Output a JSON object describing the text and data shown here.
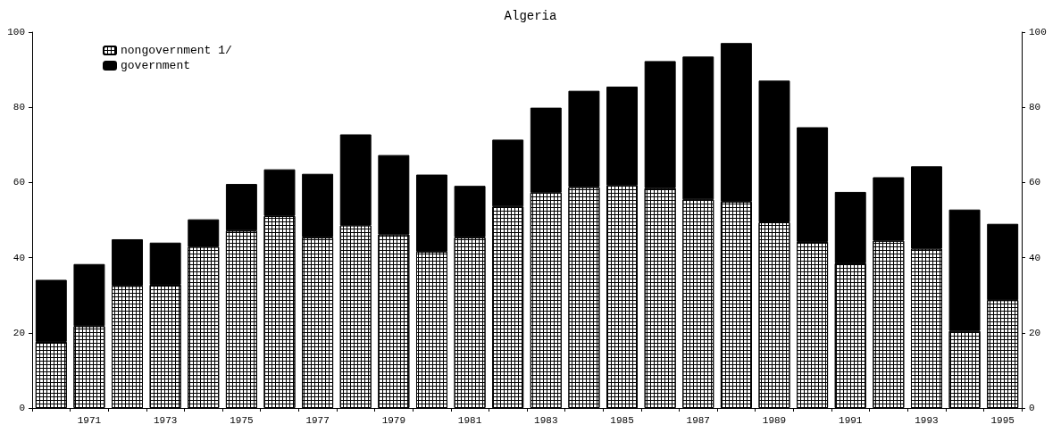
{
  "chart_data": {
    "type": "bar",
    "title": "Algeria",
    "stacked": true,
    "categories": [
      null,
      "1971",
      null,
      "1973",
      null,
      "1975",
      null,
      "1977",
      null,
      "1979",
      null,
      "1981",
      null,
      "1983",
      null,
      "1985",
      null,
      "1987",
      null,
      "1989",
      null,
      "1991",
      null,
      "1993",
      null,
      "1995"
    ],
    "series": [
      {
        "name": "nongovernment 1/",
        "color": "#ffffff",
        "values": [
          17.6,
          21.8,
          32.5,
          32.8,
          42.9,
          47.2,
          51.1,
          45.4,
          48.6,
          46.2,
          41.6,
          45.4,
          53.6,
          57.3,
          58.8,
          59.2,
          58.5,
          55.5,
          54.9,
          49.4,
          44.2,
          38.5,
          44.5,
          42.4,
          20.5,
          28.7
        ]
      },
      {
        "name": "government",
        "color": "#000000",
        "values": [
          16.5,
          16.5,
          12.4,
          11.2,
          7.3,
          12.4,
          12.4,
          16.9,
          24.2,
          21.1,
          20.5,
          13.7,
          17.8,
          22.6,
          25.6,
          26.3,
          33.8,
          38.0,
          42.2,
          37.7,
          30.5,
          19.0,
          16.9,
          21.9,
          32.3,
          20.3
        ]
      }
    ],
    "ylim": [
      0,
      100
    ],
    "yticks": [
      0,
      20,
      40,
      60,
      80,
      100
    ],
    "y2lim": [
      0,
      100
    ],
    "y2ticks": [
      0,
      20,
      40,
      60,
      80,
      100
    ],
    "grid": false,
    "legend": "top left"
  }
}
